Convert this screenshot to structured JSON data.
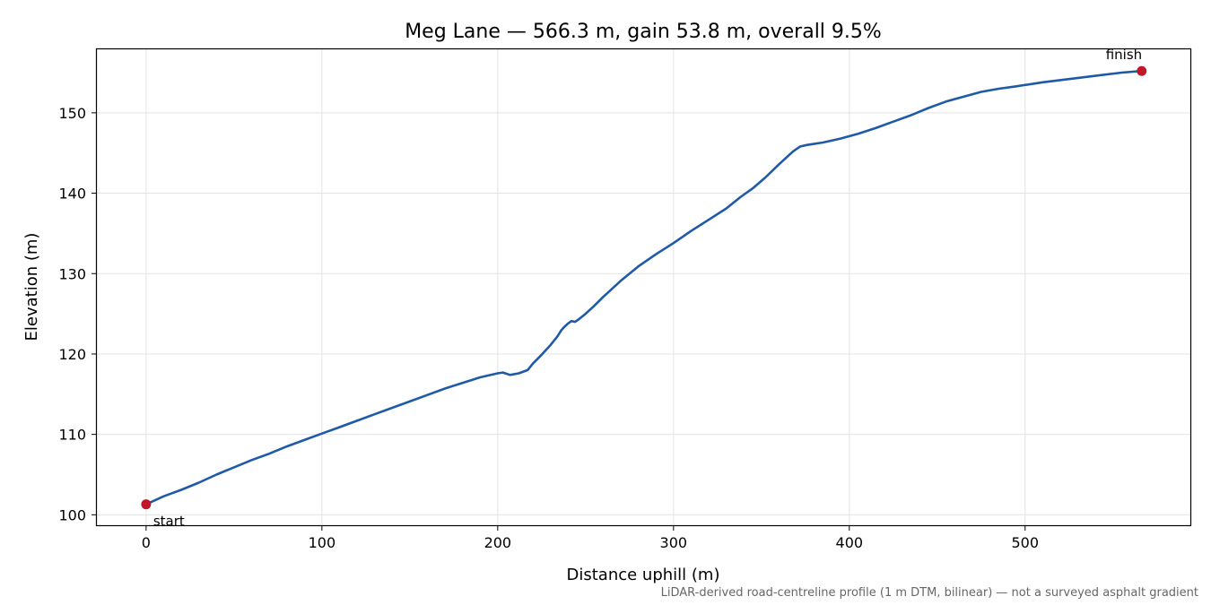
{
  "chart_data": {
    "type": "line",
    "title": "Meg Lane — 566.3 m, gain 53.8 m, overall 9.5%",
    "xlabel": "Distance uphill (m)",
    "ylabel": "Elevation (m)",
    "xlim": [
      -28,
      594
    ],
    "ylim": [
      98.7,
      157.9
    ],
    "xticks": [
      0,
      100,
      200,
      300,
      400,
      500
    ],
    "yticks": [
      100,
      110,
      120,
      130,
      140,
      150
    ],
    "grid": true,
    "footnote": "LiDAR-derived road-centreline profile (1 m DTM, bilinear) — not a surveyed asphalt gradient",
    "series": [
      {
        "color": "#1f5aa8",
        "x": [
          0,
          10,
          20,
          30,
          40,
          50,
          60,
          70,
          80,
          90,
          100,
          110,
          120,
          130,
          140,
          150,
          160,
          170,
          180,
          190,
          200,
          203,
          207,
          212,
          217,
          220,
          225,
          230,
          234,
          236,
          238,
          240,
          242,
          244,
          246,
          250,
          255,
          260,
          270,
          280,
          290,
          300,
          310,
          320,
          330,
          338,
          345,
          352,
          360,
          368,
          372,
          376,
          385,
          395,
          405,
          415,
          425,
          435,
          445,
          455,
          465,
          475,
          485,
          495,
          510,
          525,
          540,
          555,
          566.3
        ],
        "y": [
          101.3,
          102.3,
          103.1,
          104.0,
          105.0,
          105.9,
          106.8,
          107.6,
          108.5,
          109.3,
          110.1,
          110.9,
          111.7,
          112.5,
          113.3,
          114.1,
          114.9,
          115.7,
          116.4,
          117.1,
          117.6,
          117.7,
          117.4,
          117.6,
          118.0,
          118.8,
          119.9,
          121.1,
          122.2,
          122.9,
          123.4,
          123.8,
          124.1,
          124.0,
          124.3,
          125.0,
          126.0,
          127.1,
          129.1,
          130.9,
          132.4,
          133.8,
          135.3,
          136.7,
          138.1,
          139.5,
          140.6,
          141.9,
          143.6,
          145.2,
          145.8,
          146.0,
          146.3,
          146.8,
          147.4,
          148.1,
          148.9,
          149.7,
          150.6,
          151.4,
          152.0,
          152.6,
          153.0,
          153.3,
          153.8,
          154.2,
          154.6,
          155.0,
          155.2
        ]
      }
    ],
    "markers": [
      {
        "label": "start",
        "x": 0,
        "y": 101.3,
        "color": "#c0182a"
      },
      {
        "label": "finish",
        "x": 566.3,
        "y": 155.2,
        "color": "#c0182a"
      }
    ]
  }
}
